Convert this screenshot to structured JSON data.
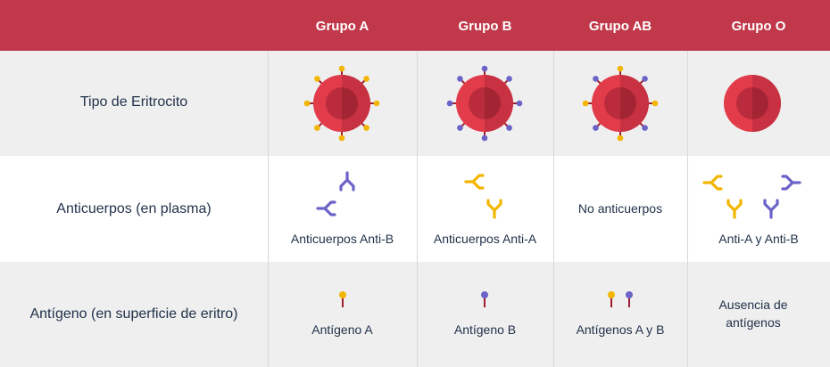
{
  "header": {
    "groups": [
      "Grupo A",
      "Grupo B",
      "Grupo AB",
      "Grupo O"
    ]
  },
  "rows": {
    "eritrocito": {
      "label": "Tipo de Eritrocito"
    },
    "anticuerpos": {
      "label": "Anticuerpos (en plasma)",
      "cells": [
        "Anticuerpos Anti-B",
        "Anticuerpos Anti-A",
        "No anticuerpos",
        "Anti-A y Anti-B"
      ]
    },
    "antigeno": {
      "label": "Antígeno (en superficie de eritro)",
      "cells": [
        "Antígeno A",
        "Antígeno B",
        "Antígenos A y B",
        "Ausencia de antígenos"
      ]
    }
  },
  "colors": {
    "header": "#c0384a",
    "cell_outer": "#e23b4a",
    "cell_inner": "#b32a3b",
    "antigen_a": "#f2b500",
    "antigen_b": "#6c63c9",
    "stem": "#9c1f2f"
  }
}
